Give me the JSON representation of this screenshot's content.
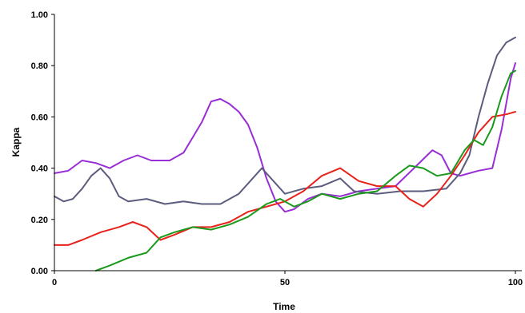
{
  "chart_data": {
    "type": "line",
    "xlabel": "Time",
    "ylabel": "Kappa",
    "xlim": [
      0,
      100
    ],
    "ylim": [
      0,
      1
    ],
    "x_ticks": [
      "0",
      "50",
      "100"
    ],
    "y_ticks": [
      "0.00",
      "0.20",
      "0.40",
      "0.60",
      "0.80",
      "1.00"
    ],
    "grid": false,
    "legend": "none",
    "series": [
      {
        "color": "#9a2ed6",
        "points": [
          [
            0,
            0.38
          ],
          [
            3,
            0.39
          ],
          [
            6,
            0.43
          ],
          [
            9,
            0.42
          ],
          [
            12,
            0.4
          ],
          [
            15,
            0.43
          ],
          [
            18,
            0.45
          ],
          [
            21,
            0.43
          ],
          [
            25,
            0.43
          ],
          [
            28,
            0.46
          ],
          [
            30,
            0.52
          ],
          [
            32,
            0.58
          ],
          [
            34,
            0.66
          ],
          [
            36,
            0.67
          ],
          [
            38,
            0.65
          ],
          [
            40,
            0.62
          ],
          [
            42,
            0.57
          ],
          [
            44,
            0.48
          ],
          [
            46,
            0.36
          ],
          [
            48,
            0.27
          ],
          [
            50,
            0.23
          ],
          [
            52,
            0.24
          ],
          [
            55,
            0.28
          ],
          [
            58,
            0.3
          ],
          [
            62,
            0.29
          ],
          [
            66,
            0.31
          ],
          [
            70,
            0.32
          ],
          [
            74,
            0.33
          ],
          [
            78,
            0.4
          ],
          [
            82,
            0.47
          ],
          [
            84,
            0.45
          ],
          [
            86,
            0.38
          ],
          [
            88,
            0.37
          ],
          [
            90,
            0.38
          ],
          [
            92,
            0.39
          ],
          [
            95,
            0.4
          ],
          [
            97,
            0.55
          ],
          [
            99,
            0.75
          ],
          [
            100,
            0.81
          ]
        ]
      },
      {
        "color": "#5c5c7e",
        "points": [
          [
            0,
            0.29
          ],
          [
            2,
            0.27
          ],
          [
            4,
            0.28
          ],
          [
            6,
            0.32
          ],
          [
            8,
            0.37
          ],
          [
            10,
            0.4
          ],
          [
            12,
            0.36
          ],
          [
            14,
            0.29
          ],
          [
            16,
            0.27
          ],
          [
            20,
            0.28
          ],
          [
            24,
            0.26
          ],
          [
            28,
            0.27
          ],
          [
            32,
            0.26
          ],
          [
            36,
            0.26
          ],
          [
            40,
            0.3
          ],
          [
            43,
            0.36
          ],
          [
            45,
            0.4
          ],
          [
            47,
            0.36
          ],
          [
            50,
            0.3
          ],
          [
            54,
            0.32
          ],
          [
            58,
            0.33
          ],
          [
            62,
            0.36
          ],
          [
            65,
            0.31
          ],
          [
            70,
            0.3
          ],
          [
            75,
            0.31
          ],
          [
            80,
            0.31
          ],
          [
            85,
            0.32
          ],
          [
            88,
            0.38
          ],
          [
            90,
            0.45
          ],
          [
            92,
            0.6
          ],
          [
            94,
            0.73
          ],
          [
            96,
            0.84
          ],
          [
            98,
            0.89
          ],
          [
            100,
            0.91
          ]
        ]
      },
      {
        "color": "#e8221b",
        "points": [
          [
            0,
            0.1
          ],
          [
            3,
            0.1
          ],
          [
            6,
            0.12
          ],
          [
            10,
            0.15
          ],
          [
            14,
            0.17
          ],
          [
            17,
            0.19
          ],
          [
            20,
            0.17
          ],
          [
            23,
            0.12
          ],
          [
            26,
            0.14
          ],
          [
            30,
            0.17
          ],
          [
            34,
            0.17
          ],
          [
            38,
            0.19
          ],
          [
            42,
            0.23
          ],
          [
            46,
            0.25
          ],
          [
            50,
            0.27
          ],
          [
            54,
            0.31
          ],
          [
            58,
            0.37
          ],
          [
            62,
            0.4
          ],
          [
            66,
            0.35
          ],
          [
            70,
            0.33
          ],
          [
            74,
            0.33
          ],
          [
            77,
            0.28
          ],
          [
            80,
            0.25
          ],
          [
            83,
            0.3
          ],
          [
            86,
            0.37
          ],
          [
            89,
            0.45
          ],
          [
            92,
            0.54
          ],
          [
            95,
            0.6
          ],
          [
            98,
            0.61
          ],
          [
            100,
            0.62
          ]
        ]
      },
      {
        "color": "#1a9a1a",
        "points": [
          [
            9,
            0.0
          ],
          [
            12,
            0.02
          ],
          [
            16,
            0.05
          ],
          [
            20,
            0.07
          ],
          [
            23,
            0.13
          ],
          [
            26,
            0.15
          ],
          [
            30,
            0.17
          ],
          [
            34,
            0.16
          ],
          [
            38,
            0.18
          ],
          [
            42,
            0.21
          ],
          [
            46,
            0.26
          ],
          [
            49,
            0.28
          ],
          [
            52,
            0.25
          ],
          [
            55,
            0.27
          ],
          [
            58,
            0.3
          ],
          [
            62,
            0.28
          ],
          [
            66,
            0.3
          ],
          [
            70,
            0.31
          ],
          [
            74,
            0.37
          ],
          [
            77,
            0.41
          ],
          [
            80,
            0.4
          ],
          [
            83,
            0.37
          ],
          [
            86,
            0.38
          ],
          [
            89,
            0.47
          ],
          [
            91,
            0.51
          ],
          [
            93,
            0.49
          ],
          [
            95,
            0.56
          ],
          [
            97,
            0.68
          ],
          [
            99,
            0.77
          ],
          [
            100,
            0.78
          ]
        ]
      }
    ]
  }
}
